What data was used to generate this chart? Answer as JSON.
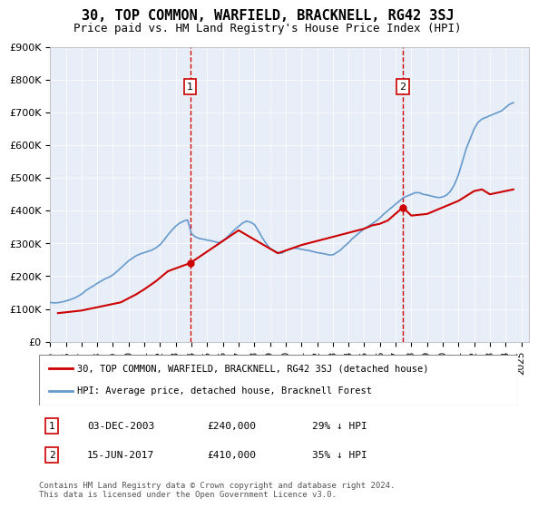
{
  "title": "30, TOP COMMON, WARFIELD, BRACKNELL, RG42 3SJ",
  "subtitle": "Price paid vs. HM Land Registry's House Price Index (HPI)",
  "ylabel": "",
  "xlabel": "",
  "ylim": [
    0,
    900000
  ],
  "xlim_start": 1995.0,
  "xlim_end": 2025.5,
  "yticks": [
    0,
    100000,
    200000,
    300000,
    400000,
    500000,
    600000,
    700000,
    800000,
    900000
  ],
  "ytick_labels": [
    "£0",
    "£100K",
    "£200K",
    "£300K",
    "£400K",
    "£500K",
    "£600K",
    "£700K",
    "£800K",
    "£900K"
  ],
  "xtick_years": [
    1995,
    1996,
    1997,
    1998,
    1999,
    2000,
    2001,
    2002,
    2003,
    2004,
    2005,
    2006,
    2007,
    2008,
    2009,
    2010,
    2011,
    2012,
    2013,
    2014,
    2015,
    2016,
    2017,
    2018,
    2019,
    2020,
    2021,
    2022,
    2023,
    2024,
    2025
  ],
  "background_color": "#e8eef8",
  "plot_bg_color": "#e8eef8",
  "line_color_hpi": "#6699cc",
  "line_color_price": "#cc0000",
  "vline_color": "#cc0000",
  "vline_style": "--",
  "transaction1_x": 2003.92,
  "transaction1_y": 240000,
  "transaction1_label": "1",
  "transaction1_date": "03-DEC-2003",
  "transaction1_price": "£240,000",
  "transaction1_hpi": "29% ↓ HPI",
  "transaction2_x": 2017.46,
  "transaction2_y": 410000,
  "transaction2_label": "2",
  "transaction2_date": "15-JUN-2017",
  "transaction2_price": "£410,000",
  "transaction2_hpi": "35% ↓ HPI",
  "legend_label_price": "30, TOP COMMON, WARFIELD, BRACKNELL, RG42 3SJ (detached house)",
  "legend_label_hpi": "HPI: Average price, detached house, Bracknell Forest",
  "footer_text": "Contains HM Land Registry data © Crown copyright and database right 2024.\nThis data is licensed under the Open Government Licence v3.0.",
  "hpi_x": [
    1995.0,
    1995.25,
    1995.5,
    1995.75,
    1996.0,
    1996.25,
    1996.5,
    1996.75,
    1997.0,
    1997.25,
    1997.5,
    1997.75,
    1998.0,
    1998.25,
    1998.5,
    1998.75,
    1999.0,
    1999.25,
    1999.5,
    1999.75,
    2000.0,
    2000.25,
    2000.5,
    2000.75,
    2001.0,
    2001.25,
    2001.5,
    2001.75,
    2002.0,
    2002.25,
    2002.5,
    2002.75,
    2003.0,
    2003.25,
    2003.5,
    2003.75,
    2004.0,
    2004.25,
    2004.5,
    2004.75,
    2005.0,
    2005.25,
    2005.5,
    2005.75,
    2006.0,
    2006.25,
    2006.5,
    2006.75,
    2007.0,
    2007.25,
    2007.5,
    2007.75,
    2008.0,
    2008.25,
    2008.5,
    2008.75,
    2009.0,
    2009.25,
    2009.5,
    2009.75,
    2010.0,
    2010.25,
    2010.5,
    2010.75,
    2011.0,
    2011.25,
    2011.5,
    2011.75,
    2012.0,
    2012.25,
    2012.5,
    2012.75,
    2013.0,
    2013.25,
    2013.5,
    2013.75,
    2014.0,
    2014.25,
    2014.5,
    2014.75,
    2015.0,
    2015.25,
    2015.5,
    2015.75,
    2016.0,
    2016.25,
    2016.5,
    2016.75,
    2017.0,
    2017.25,
    2017.5,
    2017.75,
    2018.0,
    2018.25,
    2018.5,
    2018.75,
    2019.0,
    2019.25,
    2019.5,
    2019.75,
    2020.0,
    2020.25,
    2020.5,
    2020.75,
    2021.0,
    2021.25,
    2021.5,
    2021.75,
    2022.0,
    2022.25,
    2022.5,
    2022.75,
    2023.0,
    2023.25,
    2023.5,
    2023.75,
    2024.0,
    2024.25,
    2024.5
  ],
  "hpi_y": [
    120000,
    118000,
    119000,
    121000,
    124000,
    128000,
    132000,
    138000,
    145000,
    155000,
    163000,
    170000,
    178000,
    185000,
    192000,
    197000,
    204000,
    214000,
    225000,
    236000,
    247000,
    255000,
    263000,
    268000,
    272000,
    276000,
    280000,
    287000,
    296000,
    310000,
    326000,
    340000,
    353000,
    362000,
    368000,
    372000,
    330000,
    320000,
    315000,
    313000,
    310000,
    308000,
    305000,
    302000,
    308000,
    318000,
    330000,
    342000,
    352000,
    362000,
    368000,
    365000,
    358000,
    340000,
    318000,
    300000,
    285000,
    278000,
    272000,
    270000,
    278000,
    282000,
    286000,
    285000,
    282000,
    280000,
    278000,
    275000,
    272000,
    270000,
    268000,
    265000,
    265000,
    272000,
    280000,
    292000,
    302000,
    315000,
    325000,
    335000,
    345000,
    352000,
    360000,
    368000,
    378000,
    390000,
    400000,
    410000,
    420000,
    430000,
    440000,
    445000,
    450000,
    455000,
    455000,
    450000,
    448000,
    445000,
    442000,
    440000,
    442000,
    448000,
    460000,
    480000,
    510000,
    550000,
    590000,
    620000,
    650000,
    670000,
    680000,
    685000,
    690000,
    695000,
    700000,
    705000,
    715000,
    725000,
    730000
  ],
  "price_x": [
    1995.5,
    1997.0,
    1998.0,
    1999.5,
    2000.5,
    2001.0,
    2001.75,
    2002.5,
    2003.92,
    2007.0,
    2009.5,
    2011.0,
    2013.0,
    2015.0,
    2015.5,
    2016.0,
    2016.5,
    2017.46,
    2018.0,
    2019.0,
    2019.5,
    2020.0,
    2021.0,
    2021.5,
    2022.0,
    2022.5,
    2023.0,
    2023.5,
    2024.0,
    2024.5
  ],
  "price_y": [
    87000,
    95000,
    105000,
    120000,
    145000,
    160000,
    185000,
    215000,
    240000,
    340000,
    270000,
    295000,
    320000,
    345000,
    355000,
    360000,
    370000,
    410000,
    385000,
    390000,
    400000,
    410000,
    430000,
    445000,
    460000,
    465000,
    450000,
    455000,
    460000,
    465000
  ]
}
